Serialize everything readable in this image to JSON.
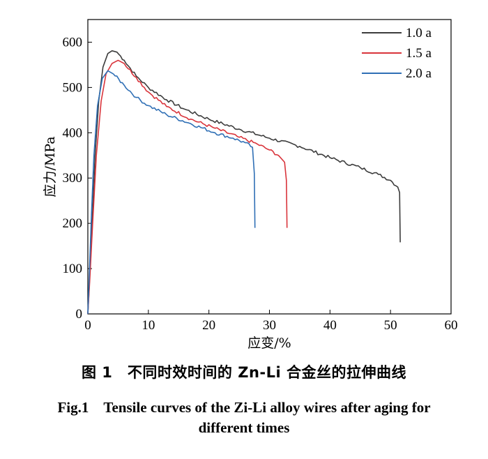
{
  "chart_data": {
    "type": "line",
    "xlabel": "应变/%",
    "ylabel": "应力/MPa",
    "xlim": [
      0,
      60
    ],
    "ylim": [
      0,
      650
    ],
    "xticks": [
      "0",
      "10",
      "20",
      "30",
      "40",
      "50",
      "60"
    ],
    "yticks": [
      "0",
      "100",
      "200",
      "300",
      "400",
      "500",
      "600"
    ],
    "legend_position": "top-right",
    "series": [
      {
        "name": "1.0 a",
        "color": "#3c3c3c",
        "points": [
          [
            0,
            0
          ],
          [
            0.3,
            80
          ],
          [
            0.7,
            200
          ],
          [
            1.2,
            350
          ],
          [
            1.8,
            470
          ],
          [
            2.5,
            545
          ],
          [
            3.3,
            575
          ],
          [
            4.0,
            581
          ],
          [
            4.8,
            578
          ],
          [
            6,
            560
          ],
          [
            8,
            525
          ],
          [
            10,
            500
          ],
          [
            13,
            473
          ],
          [
            16,
            452
          ],
          [
            20,
            430
          ],
          [
            25,
            408
          ],
          [
            30,
            388
          ],
          [
            35,
            370
          ],
          [
            40,
            345
          ],
          [
            45,
            323
          ],
          [
            48,
            308
          ],
          [
            50,
            295
          ],
          [
            51.2,
            280
          ],
          [
            51.5,
            268
          ],
          [
            51.6,
            158
          ]
        ]
      },
      {
        "name": "1.5 a",
        "color": "#d9343b",
        "points": [
          [
            0,
            0
          ],
          [
            0.3,
            70
          ],
          [
            0.8,
            200
          ],
          [
            1.4,
            350
          ],
          [
            2.2,
            470
          ],
          [
            3.0,
            530
          ],
          [
            4.0,
            553
          ],
          [
            5.0,
            560
          ],
          [
            6,
            553
          ],
          [
            8,
            522
          ],
          [
            10,
            490
          ],
          [
            13,
            458
          ],
          [
            17,
            430
          ],
          [
            21,
            410
          ],
          [
            25,
            390
          ],
          [
            28,
            375
          ],
          [
            30,
            362
          ],
          [
            31.5,
            350
          ],
          [
            32.5,
            335
          ],
          [
            32.8,
            295
          ],
          [
            32.9,
            190
          ]
        ]
      },
      {
        "name": "2.0 a",
        "color": "#2f6fb5",
        "points": [
          [
            0,
            0
          ],
          [
            0.25,
            90
          ],
          [
            0.6,
            220
          ],
          [
            1.0,
            350
          ],
          [
            1.6,
            460
          ],
          [
            2.4,
            520
          ],
          [
            3.3,
            537
          ],
          [
            4.2,
            530
          ],
          [
            6,
            505
          ],
          [
            8,
            478
          ],
          [
            10,
            460
          ],
          [
            13,
            440
          ],
          [
            17,
            420
          ],
          [
            21,
            400
          ],
          [
            24,
            388
          ],
          [
            26,
            378
          ],
          [
            27.2,
            368
          ],
          [
            27.5,
            310
          ],
          [
            27.6,
            190
          ]
        ]
      }
    ]
  },
  "caption": {
    "cn": "图 1　不同时效时间的 Zn-Li 合金丝的拉伸曲线",
    "en_line1": "Fig.1　Tensile curves of the Zi-Li alloy wires after aging for",
    "en_line2": "different times"
  }
}
